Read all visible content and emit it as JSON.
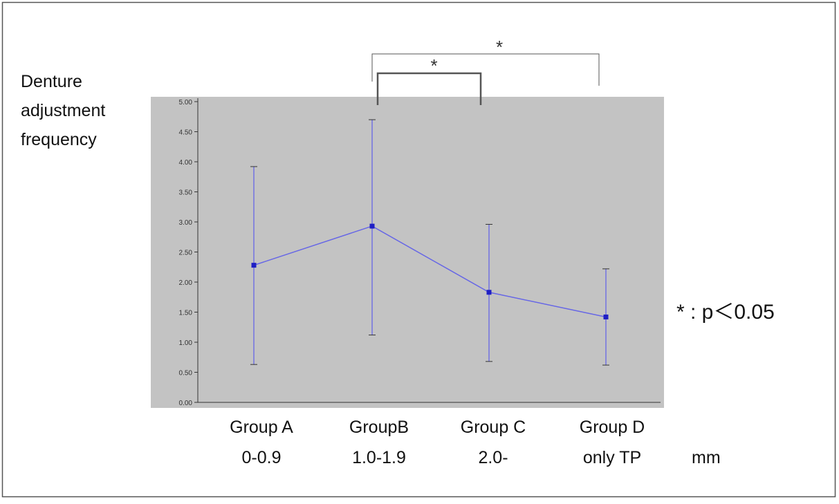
{
  "chart_data": {
    "type": "line",
    "ylabel_lines": [
      "Denture",
      "adjustment",
      "frequency"
    ],
    "categories": [
      "Group A",
      "GroupB",
      "Group C",
      "Group D"
    ],
    "category_sublabels": [
      "0-0.9",
      "1.0-1.9",
      "2.0-",
      "only  TP"
    ],
    "x_unit": "mm",
    "ylim": [
      0,
      5
    ],
    "yticks": [
      {
        "value": 0,
        "label": "0.00"
      },
      {
        "value": 0.5,
        "label": "0.50"
      },
      {
        "value": 1,
        "label": "1.00"
      },
      {
        "value": 1.5,
        "label": "1.50"
      },
      {
        "value": 2,
        "label": "2.00"
      },
      {
        "value": 2.5,
        "label": "2.50"
      },
      {
        "value": 3,
        "label": "3.00"
      },
      {
        "value": 3.5,
        "label": "3.50"
      },
      {
        "value": 4,
        "label": "4.00"
      },
      {
        "value": 4.5,
        "label": "4.50"
      },
      {
        "value": 5,
        "label": "5.00"
      }
    ],
    "values": [
      2.28,
      2.93,
      1.83,
      1.42
    ],
    "error_upper": [
      3.92,
      4.7,
      2.96,
      2.22
    ],
    "error_lower": [
      0.63,
      1.12,
      0.68,
      0.62
    ],
    "significance": [
      {
        "from": 1,
        "to": 2,
        "label": "*"
      },
      {
        "from": 1,
        "to": 3,
        "label": "*"
      }
    ],
    "legend_note": "* : p＜0.05",
    "grid": false,
    "colors": {
      "line": "#6666e6",
      "marker": "#1f1fc4",
      "plot_bg": "#c3c3c3",
      "bracket": "#555555"
    }
  }
}
